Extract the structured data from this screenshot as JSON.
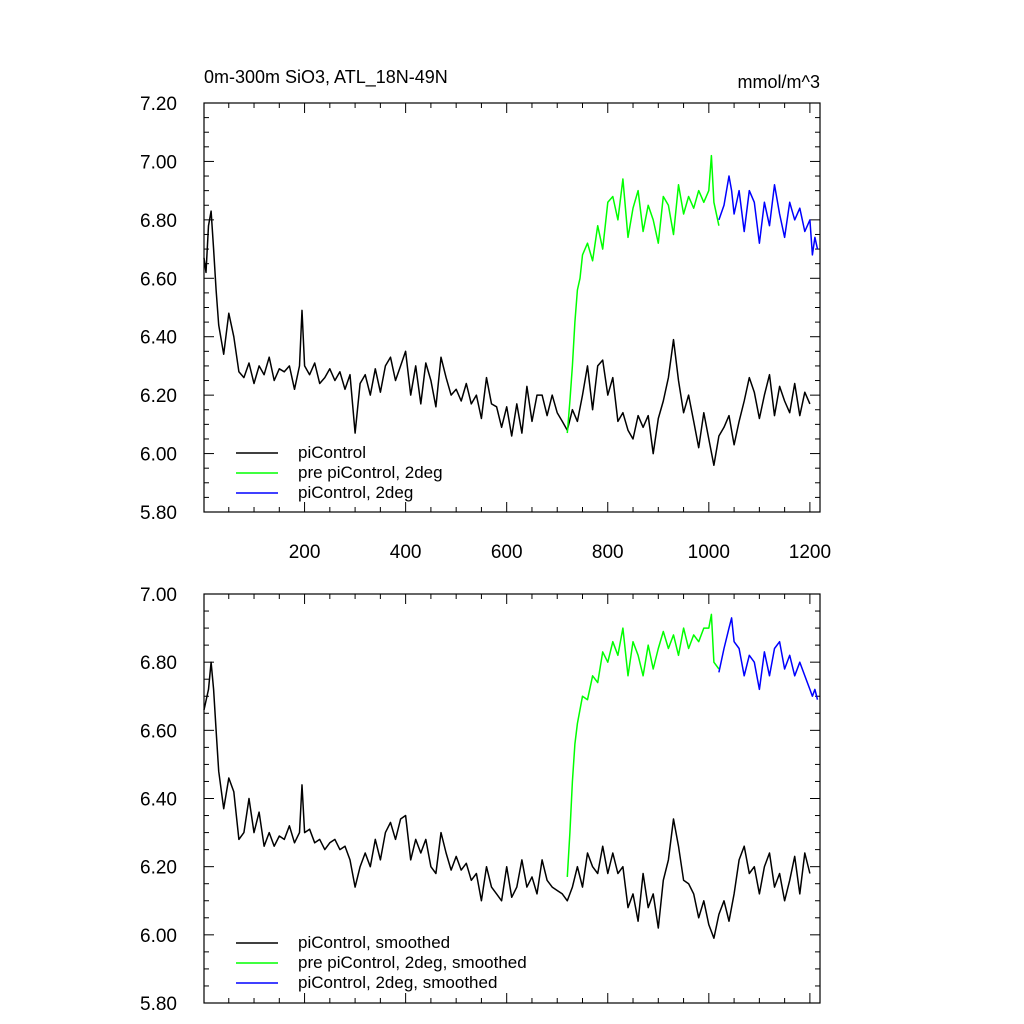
{
  "chart_data": [
    {
      "type": "line",
      "title": "0m-300m SiO3, ATL_18N-49N",
      "units": "mmol/m^3",
      "xlim": [
        1,
        1220
      ],
      "ylim": [
        5.8,
        7.2
      ],
      "xticks": [
        200,
        400,
        600,
        800,
        1000,
        1200
      ],
      "xtick_labels": [
        "200",
        "400",
        "600",
        "800",
        "1000",
        "1200"
      ],
      "yticks": [
        5.8,
        6.0,
        6.2,
        6.4,
        6.6,
        6.8,
        7.0,
        7.2
      ],
      "ytick_labels": [
        "5.80",
        "6.00",
        "6.20",
        "6.40",
        "6.60",
        "6.80",
        "7.00",
        "7.20"
      ],
      "legend_position": "bottom-left",
      "series": [
        {
          "name": "piControl",
          "color": "#000000",
          "x": [
            1,
            5,
            10,
            15,
            20,
            25,
            30,
            40,
            50,
            60,
            70,
            80,
            90,
            100,
            110,
            120,
            130,
            140,
            150,
            160,
            170,
            180,
            190,
            195,
            200,
            210,
            220,
            230,
            240,
            250,
            260,
            270,
            280,
            290,
            300,
            310,
            320,
            330,
            340,
            350,
            360,
            370,
            380,
            390,
            400,
            410,
            420,
            430,
            440,
            450,
            460,
            470,
            480,
            490,
            500,
            510,
            520,
            530,
            540,
            550,
            560,
            570,
            580,
            590,
            600,
            610,
            620,
            630,
            640,
            650,
            660,
            670,
            680,
            690,
            700,
            710,
            720,
            730,
            740,
            750,
            760,
            770,
            780,
            790,
            800,
            810,
            820,
            830,
            840,
            850,
            860,
            870,
            880,
            890,
            900,
            910,
            920,
            930,
            940,
            950,
            960,
            970,
            980,
            990,
            1000,
            1010,
            1020,
            1030,
            1040,
            1050,
            1060,
            1070,
            1080,
            1090,
            1100,
            1110,
            1120,
            1130,
            1140,
            1150,
            1160,
            1170,
            1180,
            1190,
            1200
          ],
          "values": [
            6.67,
            6.62,
            6.78,
            6.83,
            6.7,
            6.56,
            6.44,
            6.34,
            6.48,
            6.4,
            6.28,
            6.26,
            6.31,
            6.24,
            6.3,
            6.27,
            6.33,
            6.25,
            6.29,
            6.28,
            6.3,
            6.22,
            6.3,
            6.49,
            6.3,
            6.27,
            6.31,
            6.24,
            6.26,
            6.29,
            6.25,
            6.28,
            6.22,
            6.27,
            6.07,
            6.24,
            6.27,
            6.2,
            6.29,
            6.21,
            6.3,
            6.33,
            6.25,
            6.3,
            6.35,
            6.2,
            6.3,
            6.17,
            6.31,
            6.25,
            6.16,
            6.33,
            6.26,
            6.2,
            6.22,
            6.18,
            6.24,
            6.17,
            6.2,
            6.12,
            6.26,
            6.17,
            6.16,
            6.09,
            6.16,
            6.06,
            6.17,
            6.07,
            6.23,
            6.11,
            6.2,
            6.2,
            6.13,
            6.2,
            6.14,
            6.11,
            6.08,
            6.15,
            6.11,
            6.2,
            6.3,
            6.15,
            6.3,
            6.32,
            6.2,
            6.26,
            6.11,
            6.14,
            6.08,
            6.05,
            6.13,
            6.09,
            6.13,
            6.0,
            6.12,
            6.18,
            6.26,
            6.39,
            6.25,
            6.14,
            6.2,
            6.11,
            6.02,
            6.14,
            6.05,
            5.96,
            6.06,
            6.09,
            6.13,
            6.03,
            6.11,
            6.18,
            6.26,
            6.21,
            6.12,
            6.2,
            6.27,
            6.13,
            6.23,
            6.18,
            6.14,
            6.24,
            6.13,
            6.21,
            6.17
          ]
        },
        {
          "name": "pre piControl, 2deg",
          "color": "#00ff00",
          "x": [
            720,
            725,
            730,
            735,
            740,
            745,
            750,
            760,
            770,
            780,
            790,
            800,
            810,
            820,
            830,
            840,
            850,
            860,
            870,
            880,
            890,
            900,
            910,
            920,
            930,
            940,
            950,
            960,
            970,
            980,
            990,
            1000,
            1005,
            1010,
            1020
          ],
          "values": [
            6.07,
            6.18,
            6.3,
            6.45,
            6.56,
            6.6,
            6.68,
            6.72,
            6.66,
            6.78,
            6.7,
            6.86,
            6.88,
            6.8,
            6.94,
            6.74,
            6.84,
            6.9,
            6.76,
            6.85,
            6.8,
            6.72,
            6.88,
            6.85,
            6.75,
            6.92,
            6.82,
            6.88,
            6.84,
            6.9,
            6.86,
            6.9,
            7.02,
            6.86,
            6.78
          ]
        },
        {
          "name": "piControl, 2deg",
          "color": "#0000ff",
          "x": [
            1020,
            1030,
            1040,
            1045,
            1050,
            1060,
            1070,
            1080,
            1090,
            1100,
            1110,
            1120,
            1130,
            1140,
            1150,
            1160,
            1170,
            1180,
            1190,
            1200,
            1205,
            1210,
            1215
          ],
          "values": [
            6.8,
            6.85,
            6.95,
            6.9,
            6.82,
            6.9,
            6.76,
            6.9,
            6.86,
            6.72,
            6.86,
            6.78,
            6.92,
            6.82,
            6.74,
            6.86,
            6.8,
            6.84,
            6.76,
            6.8,
            6.68,
            6.74,
            6.7
          ]
        }
      ]
    },
    {
      "type": "line",
      "xlim": [
        1,
        1220
      ],
      "ylim": [
        5.8,
        7.0
      ],
      "xticks": [
        200,
        400,
        600,
        800,
        1000,
        1200
      ],
      "yticks": [
        5.8,
        6.0,
        6.2,
        6.4,
        6.6,
        6.8,
        7.0
      ],
      "ytick_labels": [
        "5.80",
        "6.00",
        "6.20",
        "6.40",
        "6.60",
        "6.80",
        "7.00"
      ],
      "legend_position": "bottom-left",
      "series": [
        {
          "name": "piControl, smoothed",
          "color": "#000000",
          "x": [
            1,
            10,
            15,
            20,
            25,
            30,
            40,
            50,
            60,
            70,
            80,
            90,
            100,
            110,
            120,
            130,
            140,
            150,
            160,
            170,
            180,
            190,
            195,
            200,
            210,
            220,
            230,
            240,
            250,
            260,
            270,
            280,
            290,
            300,
            310,
            320,
            330,
            340,
            350,
            360,
            370,
            380,
            390,
            400,
            410,
            420,
            430,
            440,
            450,
            460,
            470,
            480,
            490,
            500,
            510,
            520,
            530,
            540,
            550,
            560,
            570,
            580,
            590,
            600,
            610,
            620,
            630,
            640,
            650,
            660,
            670,
            680,
            690,
            700,
            710,
            720,
            730,
            740,
            750,
            760,
            770,
            780,
            790,
            800,
            810,
            820,
            830,
            840,
            850,
            860,
            870,
            880,
            890,
            900,
            910,
            920,
            930,
            940,
            950,
            960,
            970,
            980,
            990,
            1000,
            1010,
            1020,
            1030,
            1040,
            1050,
            1060,
            1070,
            1080,
            1090,
            1100,
            1110,
            1120,
            1130,
            1140,
            1150,
            1160,
            1170,
            1180,
            1190,
            1200
          ],
          "values": [
            6.66,
            6.72,
            6.8,
            6.72,
            6.6,
            6.48,
            6.37,
            6.46,
            6.42,
            6.28,
            6.3,
            6.4,
            6.3,
            6.36,
            6.26,
            6.3,
            6.26,
            6.29,
            6.28,
            6.32,
            6.27,
            6.3,
            6.44,
            6.3,
            6.31,
            6.27,
            6.28,
            6.25,
            6.27,
            6.28,
            6.25,
            6.26,
            6.22,
            6.14,
            6.2,
            6.24,
            6.2,
            6.28,
            6.22,
            6.3,
            6.33,
            6.28,
            6.34,
            6.35,
            6.22,
            6.28,
            6.24,
            6.28,
            6.2,
            6.18,
            6.3,
            6.24,
            6.19,
            6.23,
            6.19,
            6.21,
            6.16,
            6.18,
            6.1,
            6.2,
            6.14,
            6.12,
            6.1,
            6.2,
            6.11,
            6.14,
            6.22,
            6.14,
            6.17,
            6.12,
            6.22,
            6.16,
            6.14,
            6.13,
            6.12,
            6.1,
            6.14,
            6.2,
            6.14,
            6.24,
            6.2,
            6.18,
            6.26,
            6.18,
            6.24,
            6.18,
            6.2,
            6.08,
            6.12,
            6.04,
            6.18,
            6.08,
            6.12,
            6.02,
            6.16,
            6.22,
            6.34,
            6.26,
            6.16,
            6.15,
            6.12,
            6.05,
            6.1,
            6.03,
            5.99,
            6.06,
            6.1,
            6.04,
            6.12,
            6.22,
            6.26,
            6.18,
            6.2,
            6.12,
            6.2,
            6.24,
            6.14,
            6.18,
            6.1,
            6.16,
            6.23,
            6.12,
            6.24,
            6.18
          ]
        },
        {
          "name": "pre piControl, 2deg, smoothed",
          "color": "#00ff00",
          "x": [
            720,
            725,
            730,
            735,
            740,
            750,
            760,
            770,
            780,
            790,
            800,
            810,
            820,
            830,
            840,
            850,
            860,
            870,
            880,
            890,
            900,
            910,
            920,
            930,
            940,
            950,
            960,
            970,
            980,
            990,
            1000,
            1005,
            1010,
            1020
          ],
          "values": [
            6.17,
            6.3,
            6.45,
            6.56,
            6.62,
            6.7,
            6.69,
            6.76,
            6.74,
            6.83,
            6.8,
            6.86,
            6.82,
            6.9,
            6.76,
            6.86,
            6.82,
            6.76,
            6.85,
            6.78,
            6.84,
            6.89,
            6.84,
            6.88,
            6.82,
            6.9,
            6.84,
            6.88,
            6.86,
            6.9,
            6.9,
            6.94,
            6.8,
            6.78
          ]
        },
        {
          "name": "piControl, 2deg, smoothed",
          "color": "#0000ff",
          "x": [
            1020,
            1030,
            1040,
            1045,
            1050,
            1060,
            1070,
            1080,
            1090,
            1100,
            1110,
            1120,
            1130,
            1140,
            1150,
            1160,
            1170,
            1180,
            1190,
            1200,
            1205,
            1210,
            1215
          ],
          "values": [
            6.77,
            6.84,
            6.9,
            6.93,
            6.86,
            6.84,
            6.76,
            6.82,
            6.8,
            6.72,
            6.83,
            6.76,
            6.84,
            6.86,
            6.78,
            6.82,
            6.76,
            6.8,
            6.76,
            6.72,
            6.7,
            6.72,
            6.69
          ]
        }
      ]
    }
  ]
}
